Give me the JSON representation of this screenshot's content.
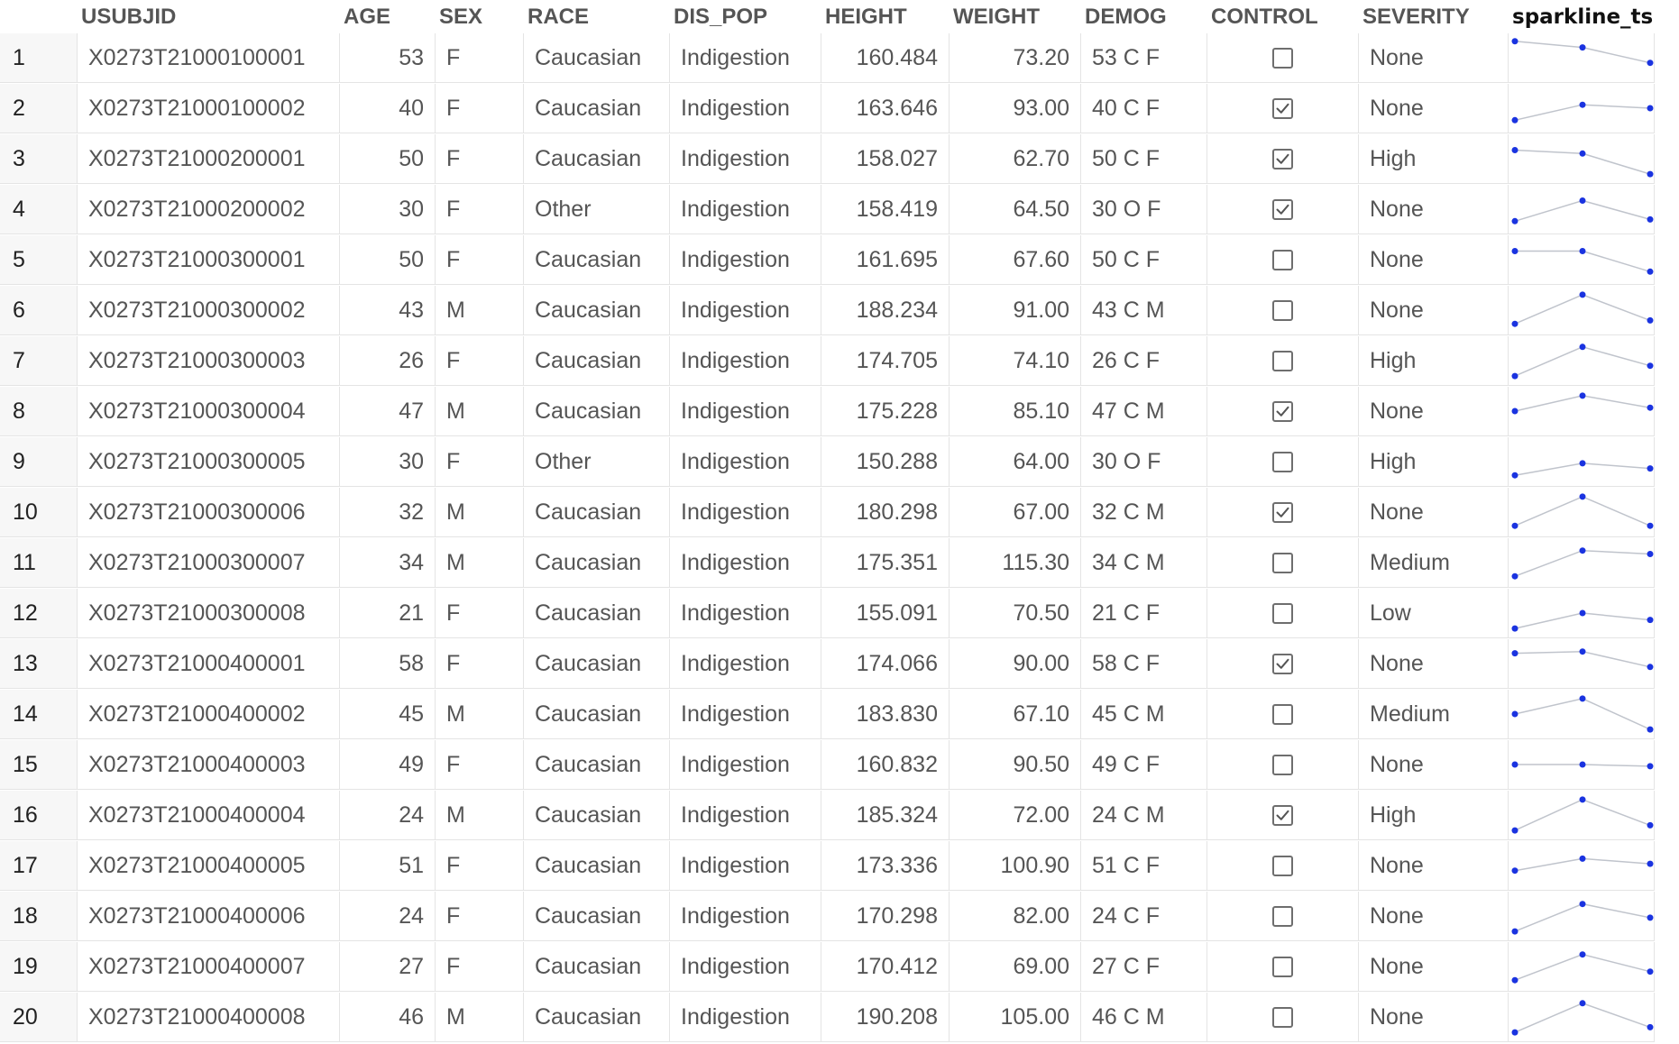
{
  "table": {
    "columns": [
      {
        "key": "row",
        "label": ""
      },
      {
        "key": "usubjid",
        "label": "USUBJID"
      },
      {
        "key": "age",
        "label": "AGE"
      },
      {
        "key": "sex",
        "label": "SEX"
      },
      {
        "key": "race",
        "label": "RACE"
      },
      {
        "key": "dis_pop",
        "label": "DIS_POP"
      },
      {
        "key": "height",
        "label": "HEIGHT"
      },
      {
        "key": "weight",
        "label": "WEIGHT"
      },
      {
        "key": "demog",
        "label": "DEMOG"
      },
      {
        "key": "control",
        "label": "CONTROL"
      },
      {
        "key": "severity",
        "label": "SEVERITY"
      },
      {
        "key": "sparkline_ts",
        "label": "sparkline_ts"
      }
    ],
    "sparkline_color": "#1a33e0",
    "sparkline_line_color": "#c0c4cc",
    "rows": [
      {
        "row": "1",
        "usubjid": "X0273T21000100001",
        "age": "53",
        "sex": "F",
        "race": "Caucasian",
        "dis_pop": "Indigestion",
        "height": "160.484",
        "weight": "73.20",
        "demog": "53 C F",
        "control": false,
        "severity": "None",
        "sparkline": [
          0.98,
          0.8,
          0.35
        ]
      },
      {
        "row": "2",
        "usubjid": "X0273T21000100002",
        "age": "40",
        "sex": "F",
        "race": "Caucasian",
        "dis_pop": "Indigestion",
        "height": "163.646",
        "weight": "93.00",
        "demog": "40 C F",
        "control": true,
        "severity": "None",
        "sparkline": [
          0.15,
          0.6,
          0.5
        ]
      },
      {
        "row": "3",
        "usubjid": "X0273T21000200001",
        "age": "50",
        "sex": "F",
        "race": "Caucasian",
        "dis_pop": "Indigestion",
        "height": "158.027",
        "weight": "62.70",
        "demog": "50 C F",
        "control": true,
        "severity": "High",
        "sparkline": [
          0.75,
          0.65,
          0.05
        ]
      },
      {
        "row": "4",
        "usubjid": "X0273T21000200002",
        "age": "30",
        "sex": "F",
        "race": "Other",
        "dis_pop": "Indigestion",
        "height": "158.419",
        "weight": "64.50",
        "demog": "30 O F",
        "control": true,
        "severity": "None",
        "sparkline": [
          0.15,
          0.75,
          0.2
        ]
      },
      {
        "row": "5",
        "usubjid": "X0273T21000300001",
        "age": "50",
        "sex": "F",
        "race": "Caucasian",
        "dis_pop": "Indigestion",
        "height": "161.695",
        "weight": "67.60",
        "demog": "50 C F",
        "control": false,
        "severity": "None",
        "sparkline": [
          0.75,
          0.75,
          0.15
        ]
      },
      {
        "row": "6",
        "usubjid": "X0273T21000300002",
        "age": "43",
        "sex": "M",
        "race": "Caucasian",
        "dis_pop": "Indigestion",
        "height": "188.234",
        "weight": "91.00",
        "demog": "43 C M",
        "control": false,
        "severity": "None",
        "sparkline": [
          0.1,
          0.95,
          0.2
        ]
      },
      {
        "row": "7",
        "usubjid": "X0273T21000300003",
        "age": "26",
        "sex": "F",
        "race": "Caucasian",
        "dis_pop": "Indigestion",
        "height": "174.705",
        "weight": "74.10",
        "demog": "26 C F",
        "control": false,
        "severity": "High",
        "sparkline": [
          0.05,
          0.9,
          0.35
        ]
      },
      {
        "row": "8",
        "usubjid": "X0273T21000300004",
        "age": "47",
        "sex": "M",
        "race": "Caucasian",
        "dis_pop": "Indigestion",
        "height": "175.228",
        "weight": "85.10",
        "demog": "47 C M",
        "control": true,
        "severity": "None",
        "sparkline": [
          0.5,
          0.95,
          0.6
        ]
      },
      {
        "row": "9",
        "usubjid": "X0273T21000300005",
        "age": "30",
        "sex": "F",
        "race": "Other",
        "dis_pop": "Indigestion",
        "height": "150.288",
        "weight": "64.00",
        "demog": "30 O F",
        "control": false,
        "severity": "High",
        "sparkline": [
          0.1,
          0.45,
          0.3
        ]
      },
      {
        "row": "10",
        "usubjid": "X0273T21000300006",
        "age": "32",
        "sex": "M",
        "race": "Caucasian",
        "dis_pop": "Indigestion",
        "height": "180.298",
        "weight": "67.00",
        "demog": "32 C M",
        "control": true,
        "severity": "None",
        "sparkline": [
          0.1,
          0.95,
          0.1
        ]
      },
      {
        "row": "11",
        "usubjid": "X0273T21000300007",
        "age": "34",
        "sex": "M",
        "race": "Caucasian",
        "dis_pop": "Indigestion",
        "height": "175.351",
        "weight": "115.30",
        "demog": "34 C M",
        "control": false,
        "severity": "Medium",
        "sparkline": [
          0.1,
          0.85,
          0.75
        ]
      },
      {
        "row": "12",
        "usubjid": "X0273T21000300008",
        "age": "21",
        "sex": "F",
        "race": "Caucasian",
        "dis_pop": "Indigestion",
        "height": "155.091",
        "weight": "70.50",
        "demog": "21 C F",
        "control": false,
        "severity": "Low",
        "sparkline": [
          0.05,
          0.5,
          0.3
        ]
      },
      {
        "row": "13",
        "usubjid": "X0273T21000400001",
        "age": "58",
        "sex": "F",
        "race": "Caucasian",
        "dis_pop": "Indigestion",
        "height": "174.066",
        "weight": "90.00",
        "demog": "58 C F",
        "control": true,
        "severity": "None",
        "sparkline": [
          0.8,
          0.85,
          0.4
        ]
      },
      {
        "row": "14",
        "usubjid": "X0273T21000400002",
        "age": "45",
        "sex": "M",
        "race": "Caucasian",
        "dis_pop": "Indigestion",
        "height": "183.830",
        "weight": "67.10",
        "demog": "45 C M",
        "control": false,
        "severity": "Medium",
        "sparkline": [
          0.5,
          0.95,
          0.05
        ]
      },
      {
        "row": "15",
        "usubjid": "X0273T21000400003",
        "age": "49",
        "sex": "F",
        "race": "Caucasian",
        "dis_pop": "Indigestion",
        "height": "160.832",
        "weight": "90.50",
        "demog": "49 C F",
        "control": false,
        "severity": "None",
        "sparkline": [
          0.5,
          0.5,
          0.45
        ]
      },
      {
        "row": "16",
        "usubjid": "X0273T21000400004",
        "age": "24",
        "sex": "M",
        "race": "Caucasian",
        "dis_pop": "Indigestion",
        "height": "185.324",
        "weight": "72.00",
        "demog": "24 C M",
        "control": true,
        "severity": "High",
        "sparkline": [
          0.05,
          0.95,
          0.2
        ]
      },
      {
        "row": "17",
        "usubjid": "X0273T21000400005",
        "age": "51",
        "sex": "F",
        "race": "Caucasian",
        "dis_pop": "Indigestion",
        "height": "173.336",
        "weight": "100.90",
        "demog": "51 C F",
        "control": false,
        "severity": "None",
        "sparkline": [
          0.35,
          0.7,
          0.55
        ]
      },
      {
        "row": "18",
        "usubjid": "X0273T21000400006",
        "age": "24",
        "sex": "F",
        "race": "Caucasian",
        "dis_pop": "Indigestion",
        "height": "170.298",
        "weight": "82.00",
        "demog": "24 C F",
        "control": false,
        "severity": "None",
        "sparkline": [
          0.05,
          0.85,
          0.45
        ]
      },
      {
        "row": "19",
        "usubjid": "X0273T21000400007",
        "age": "27",
        "sex": "F",
        "race": "Caucasian",
        "dis_pop": "Indigestion",
        "height": "170.412",
        "weight": "69.00",
        "demog": "27 C F",
        "control": false,
        "severity": "None",
        "sparkline": [
          0.1,
          0.85,
          0.35
        ]
      },
      {
        "row": "20",
        "usubjid": "X0273T21000400008",
        "age": "46",
        "sex": "M",
        "race": "Caucasian",
        "dis_pop": "Indigestion",
        "height": "190.208",
        "weight": "105.00",
        "demog": "46 C M",
        "control": false,
        "severity": "None",
        "sparkline": [
          0.05,
          0.9,
          0.2
        ]
      }
    ]
  }
}
